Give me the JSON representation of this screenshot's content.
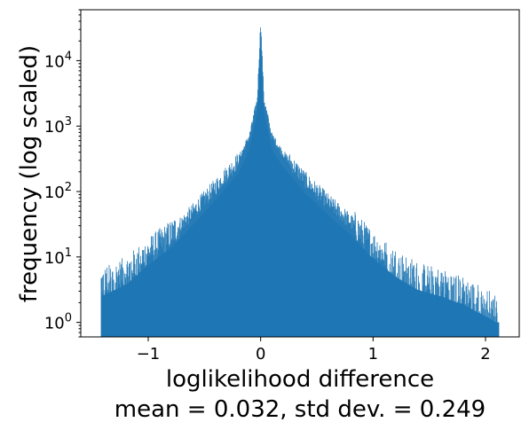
{
  "chart_data": {
    "type": "bar",
    "subtype": "histogram",
    "xlabel": "loglikelihood difference",
    "ylabel": "frequency (log scaled)",
    "caption": "mean = 0.032, std dev. = 0.249",
    "xlim": [
      -1.6,
      2.3
    ],
    "ylim": [
      0.6,
      60000
    ],
    "yscale": "log",
    "grid": false,
    "color": "#1f77b4",
    "data_range": [
      -1.42,
      2.12
    ],
    "x_ticks": [
      {
        "value": -1,
        "label": "−1"
      },
      {
        "value": 0,
        "label": "0"
      },
      {
        "value": 1,
        "label": "1"
      },
      {
        "value": 2,
        "label": "2"
      }
    ],
    "y_ticks": [
      {
        "value": 1,
        "base": "10",
        "exp": "0"
      },
      {
        "value": 10,
        "base": "10",
        "exp": "1"
      },
      {
        "value": 100,
        "base": "10",
        "exp": "2"
      },
      {
        "value": 1000,
        "base": "10",
        "exp": "3"
      },
      {
        "value": 10000,
        "base": "10",
        "exp": "4"
      }
    ],
    "envelope": {
      "x": [
        -1.42,
        -1.2,
        -1.0,
        -0.8,
        -0.6,
        -0.4,
        -0.2,
        -0.1,
        -0.03,
        0.0,
        0.03,
        0.1,
        0.2,
        0.4,
        0.6,
        0.8,
        1.0,
        1.2,
        1.4,
        1.6,
        1.8,
        2.0,
        2.12
      ],
      "y": [
        4,
        6,
        12,
        22,
        50,
        120,
        300,
        700,
        2500,
        40000,
        2500,
        700,
        380,
        150,
        70,
        35,
        15,
        8,
        5,
        4,
        3,
        2,
        1.5
      ]
    }
  }
}
